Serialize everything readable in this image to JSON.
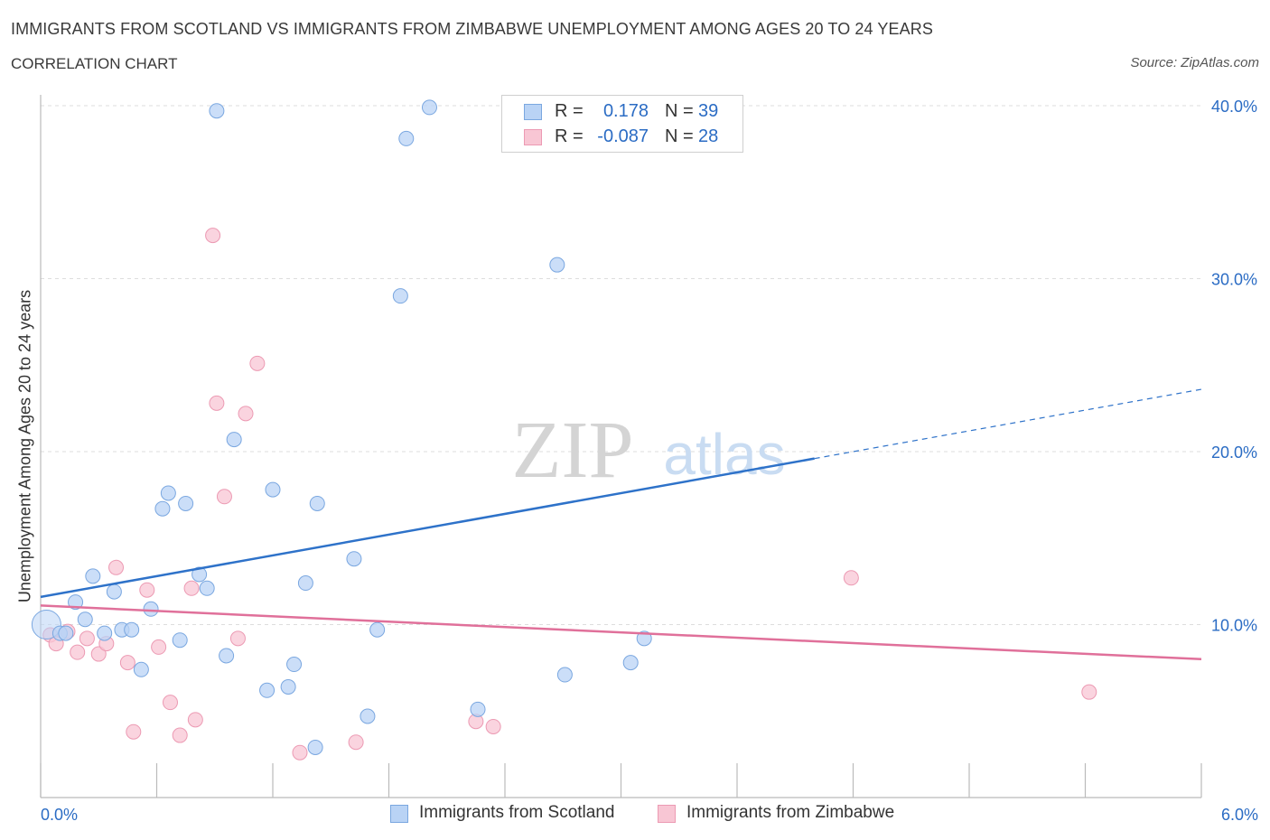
{
  "header": {
    "title": "IMMIGRANTS FROM SCOTLAND VS IMMIGRANTS FROM ZIMBABWE UNEMPLOYMENT AMONG AGES 20 TO 24 YEARS",
    "subtitle": "CORRELATION CHART",
    "source": "Source: ZipAtlas.com"
  },
  "legend": {
    "r_label": "R =",
    "n_label": "N =",
    "series": [
      {
        "name": "Immigrants from Scotland",
        "r": "0.178",
        "n": "39"
      },
      {
        "name": "Immigrants from Zimbabwe",
        "r": "-0.087",
        "n": "28"
      }
    ]
  },
  "watermark": {
    "zip": "ZIP",
    "atlas": "atlas"
  },
  "colors": {
    "scotland_fill": "#b9d3f5",
    "scotland_stroke": "#7aa7e0",
    "scotland_line": "#2e72c9",
    "zimbabwe_fill": "#f8c6d4",
    "zimbabwe_stroke": "#ec9ab3",
    "zimbabwe_line": "#e0709a",
    "axis_text": "#2b6cc4",
    "grid": "#dddddd"
  },
  "chart_data": {
    "type": "scatter",
    "title": "IMMIGRANTS FROM SCOTLAND VS IMMIGRANTS FROM ZIMBABWE UNEMPLOYMENT AMONG AGES 20 TO 24 YEARS",
    "xlabel": "",
    "ylabel": "Unemployment Among Ages 20 to 24 years",
    "xlim": [
      0,
      6
    ],
    "ylim": [
      0,
      40
    ],
    "x_tick_labels": [
      "0.0%",
      "6.0%"
    ],
    "y_ticks": [
      10,
      20,
      30,
      40
    ],
    "y_tick_labels": [
      "10.0%",
      "20.0%",
      "30.0%",
      "40.0%"
    ],
    "series": [
      {
        "name": "Immigrants from Scotland",
        "points": [
          [
            0.03,
            10.0
          ],
          [
            0.1,
            9.5
          ],
          [
            0.13,
            9.5
          ],
          [
            0.18,
            11.3
          ],
          [
            0.23,
            10.3
          ],
          [
            0.27,
            12.8
          ],
          [
            0.33,
            9.5
          ],
          [
            0.38,
            11.9
          ],
          [
            0.42,
            9.7
          ],
          [
            0.47,
            9.7
          ],
          [
            0.52,
            7.4
          ],
          [
            0.57,
            10.9
          ],
          [
            0.63,
            16.7
          ],
          [
            0.66,
            17.6
          ],
          [
            0.72,
            9.1
          ],
          [
            0.75,
            17.0
          ],
          [
            0.82,
            12.9
          ],
          [
            0.86,
            12.1
          ],
          [
            0.91,
            39.7
          ],
          [
            0.96,
            8.2
          ],
          [
            1.0,
            20.7
          ],
          [
            1.17,
            6.2
          ],
          [
            1.2,
            17.8
          ],
          [
            1.28,
            6.4
          ],
          [
            1.31,
            7.7
          ],
          [
            1.37,
            12.4
          ],
          [
            1.42,
            2.9
          ],
          [
            1.43,
            17.0
          ],
          [
            1.62,
            13.8
          ],
          [
            1.69,
            4.7
          ],
          [
            1.74,
            9.7
          ],
          [
            1.86,
            29.0
          ],
          [
            1.89,
            38.1
          ],
          [
            2.01,
            39.9
          ],
          [
            2.26,
            5.1
          ],
          [
            2.67,
            30.8
          ],
          [
            2.71,
            7.1
          ],
          [
            3.05,
            7.8
          ],
          [
            3.12,
            9.2
          ]
        ],
        "trend": {
          "x": [
            0,
            4.0
          ],
          "y": [
            11.6,
            19.6
          ]
        },
        "trend_extension": {
          "x": [
            4.0,
            6.0
          ],
          "y": [
            19.6,
            23.6
          ]
        }
      },
      {
        "name": "Immigrants from Zimbabwe",
        "points": [
          [
            0.05,
            9.4
          ],
          [
            0.08,
            8.9
          ],
          [
            0.14,
            9.6
          ],
          [
            0.19,
            8.4
          ],
          [
            0.24,
            9.2
          ],
          [
            0.3,
            8.3
          ],
          [
            0.34,
            8.9
          ],
          [
            0.39,
            13.3
          ],
          [
            0.45,
            7.8
          ],
          [
            0.48,
            3.8
          ],
          [
            0.55,
            12.0
          ],
          [
            0.61,
            8.7
          ],
          [
            0.67,
            5.5
          ],
          [
            0.72,
            3.6
          ],
          [
            0.78,
            12.1
          ],
          [
            0.8,
            4.5
          ],
          [
            0.89,
            32.5
          ],
          [
            0.91,
            22.8
          ],
          [
            0.95,
            17.4
          ],
          [
            1.02,
            9.2
          ],
          [
            1.06,
            22.2
          ],
          [
            1.12,
            25.1
          ],
          [
            1.34,
            2.6
          ],
          [
            1.63,
            3.2
          ],
          [
            2.25,
            4.4
          ],
          [
            2.34,
            4.1
          ],
          [
            4.19,
            12.7
          ],
          [
            5.42,
            6.1
          ]
        ],
        "trend": {
          "x": [
            0,
            6.0
          ],
          "y": [
            11.1,
            8.0
          ]
        }
      }
    ]
  }
}
